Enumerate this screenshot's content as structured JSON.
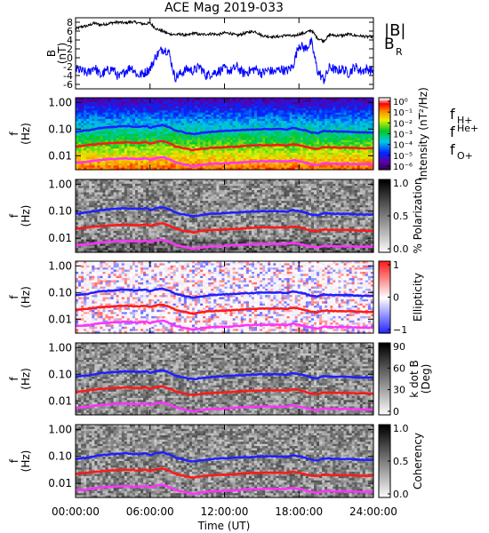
{
  "figure": {
    "title": "ACE Mag 2019-033"
  },
  "chart_data": [
    {
      "type": "line",
      "ylabel_lines": [
        "B",
        "(nT)"
      ],
      "ylim": [
        -7,
        9
      ],
      "yticks": [
        8,
        6,
        4,
        2,
        0,
        -2,
        -4,
        -6
      ],
      "legend": [
        {
          "label": "|B|",
          "color": "#000000"
        },
        {
          "label": "B",
          "subscript": "R",
          "color": "#0000ff"
        }
      ],
      "series": [
        {
          "name": "|B|",
          "color": "#000000",
          "x": [
            0,
            0.5,
            1,
            1.5,
            2,
            2.5,
            3,
            3.5,
            4,
            4.5,
            5,
            5.5,
            6,
            6.5,
            7,
            7.5,
            8,
            8.5,
            9,
            9.5,
            10,
            10.5,
            11,
            11.5,
            12,
            12.5,
            13,
            13.5,
            14,
            14.5,
            15,
            15.5,
            16,
            16.5,
            17,
            17.5,
            18,
            18.5,
            19,
            19.5,
            20,
            20.5,
            21,
            21.5,
            22,
            22.5,
            23,
            23.5,
            24
          ],
          "y": [
            6.5,
            7.0,
            7.2,
            7.8,
            7.4,
            7.6,
            7.9,
            8.0,
            7.8,
            8.1,
            7.9,
            7.6,
            7.8,
            6.5,
            6.0,
            5.4,
            5.2,
            5.3,
            5.0,
            5.6,
            5.2,
            5.3,
            5.4,
            5.2,
            5.6,
            5.5,
            5.0,
            5.4,
            5.8,
            5.9,
            5.0,
            4.8,
            4.7,
            4.8,
            5.1,
            4.8,
            5.3,
            5.6,
            6.2,
            4.4,
            3.8,
            5.2,
            5.0,
            5.0,
            5.3,
            5.0,
            4.9,
            4.7,
            4.8
          ]
        },
        {
          "name": "B_R",
          "color": "#0000ff",
          "x": [
            0,
            0.5,
            1,
            1.5,
            2,
            2.5,
            3,
            3.5,
            4,
            4.5,
            5,
            5.5,
            6,
            6.5,
            7,
            7.5,
            8,
            8.5,
            9,
            9.5,
            10,
            10.5,
            11,
            11.5,
            12,
            12.5,
            13,
            13.5,
            14,
            14.5,
            15,
            15.5,
            16,
            16.5,
            17,
            17.5,
            18,
            18.5,
            19,
            19.5,
            20,
            20.5,
            21,
            21.5,
            22,
            22.5,
            23,
            23.5,
            24
          ],
          "y": [
            -2.5,
            -3.0,
            -3.5,
            -2.0,
            -4.0,
            -3.0,
            -2.5,
            -4.5,
            -3.0,
            -2.0,
            -4.0,
            -3.5,
            -2.5,
            0.5,
            2.0,
            1.5,
            -4.5,
            -3.5,
            -2.5,
            -3.0,
            -2.0,
            -4.0,
            -3.5,
            -3.0,
            -2.5,
            -3.0,
            -2.0,
            -3.5,
            -3.0,
            -2.5,
            -3.5,
            -2.8,
            -3.2,
            -2.5,
            -3.0,
            -2.0,
            3.0,
            2.0,
            3.5,
            -3.0,
            -5.0,
            -2.0,
            -3.0,
            -2.5,
            -3.5,
            -2.0,
            -3.0,
            -2.5,
            -3.0
          ]
        }
      ]
    },
    {
      "type": "heatmap",
      "ylabel_lines": [
        "f",
        "(Hz)"
      ],
      "yscale": "log",
      "ylim": [
        0.003,
        1.5
      ],
      "yticks": [
        "1.00",
        "0.10",
        "0.01"
      ],
      "colorbar": {
        "label": "Intensity (nT²/Hz)",
        "ticks": [
          "10⁰",
          "10⁻¹",
          "10⁻²",
          "10⁻³",
          "10⁻⁴",
          "10⁻⁵",
          "10⁻⁶"
        ],
        "colormap": "rainbow"
      },
      "overlay_legend": [
        {
          "label": "f",
          "subscript": "H+",
          "color": "#3a1fd8"
        },
        {
          "label": "f",
          "superscript": "He+",
          "color": "#ff1a1a"
        },
        {
          "label": "f",
          "subscript": "O+",
          "color": "#ff33ff"
        }
      ]
    },
    {
      "type": "heatmap",
      "ylabel_lines": [
        "f",
        "(Hz)"
      ],
      "yscale": "log",
      "yticks": [
        "1.00",
        "0.10",
        "0.01"
      ],
      "colorbar": {
        "label": "% Polarization",
        "ticks": [
          "1.0",
          "0.5",
          "0.0"
        ],
        "colormap": "gray"
      }
    },
    {
      "type": "heatmap",
      "ylabel_lines": [
        "f",
        "(Hz)"
      ],
      "yscale": "log",
      "yticks": [
        "1.00",
        "0.10",
        "0.01"
      ],
      "colorbar": {
        "label": "Ellipticity",
        "ticks": [
          "1",
          "0",
          "−1"
        ],
        "colormap": "blue-white-red"
      }
    },
    {
      "type": "heatmap",
      "ylabel_lines": [
        "f",
        "(Hz)"
      ],
      "yscale": "log",
      "yticks": [
        "1.00",
        "0.10",
        "0.01"
      ],
      "colorbar": {
        "label": "k dot B (Deg)",
        "label_lines": [
          "k dot B",
          "(Deg)"
        ],
        "ticks": [
          "90",
          "60",
          "30",
          "0"
        ],
        "colormap": "gray"
      }
    },
    {
      "type": "heatmap",
      "ylabel_lines": [
        "f",
        "(Hz)"
      ],
      "yscale": "log",
      "yticks": [
        "1.00",
        "0.10",
        "0.01"
      ],
      "colorbar": {
        "label": "Coherency",
        "ticks": [
          "1.0",
          "0.5",
          "0.0"
        ],
        "colormap": "gray"
      }
    }
  ],
  "overlays": {
    "x": [
      0,
      1,
      2,
      3,
      4,
      5,
      5.7,
      6,
      6.5,
      7,
      7.5,
      8,
      8.5,
      9,
      9.5,
      10,
      11,
      12,
      13,
      14,
      15,
      16,
      16.5,
      17,
      17.5,
      18,
      18.5,
      19,
      19.5,
      20,
      21,
      22,
      23,
      24
    ],
    "f_H+": [
      0.08,
      0.09,
      0.11,
      0.12,
      0.13,
      0.12,
      0.13,
      0.11,
      0.13,
      0.14,
      0.12,
      0.09,
      0.08,
      0.07,
      0.065,
      0.07,
      0.08,
      0.085,
      0.09,
      0.095,
      0.1,
      0.1,
      0.1,
      0.095,
      0.11,
      0.1,
      0.09,
      0.075,
      0.07,
      0.085,
      0.08,
      0.08,
      0.075,
      0.075
    ],
    "f_He+": [
      0.022,
      0.025,
      0.028,
      0.03,
      0.032,
      0.03,
      0.032,
      0.028,
      0.033,
      0.035,
      0.03,
      0.023,
      0.02,
      0.018,
      0.016,
      0.018,
      0.02,
      0.021,
      0.022,
      0.024,
      0.025,
      0.025,
      0.025,
      0.024,
      0.027,
      0.025,
      0.022,
      0.019,
      0.018,
      0.021,
      0.02,
      0.02,
      0.019,
      0.019
    ],
    "f_O+": [
      0.0055,
      0.006,
      0.007,
      0.0075,
      0.008,
      0.0075,
      0.008,
      0.007,
      0.0082,
      0.0088,
      0.0075,
      0.0058,
      0.005,
      0.0045,
      0.004,
      0.0045,
      0.005,
      0.0052,
      0.0055,
      0.006,
      0.0062,
      0.0062,
      0.0062,
      0.006,
      0.0068,
      0.0062,
      0.0055,
      0.0048,
      0.0045,
      0.0052,
      0.005,
      0.005,
      0.0048,
      0.0048
    ]
  },
  "xaxis": {
    "label": "Time (UT)",
    "xlim": [
      0,
      24
    ],
    "ticks": [
      0,
      6,
      12,
      18,
      24
    ],
    "tick_labels": [
      "00:00:00",
      "06:00:00",
      "12:00:00",
      "18:00:00",
      "24:00:00"
    ]
  }
}
